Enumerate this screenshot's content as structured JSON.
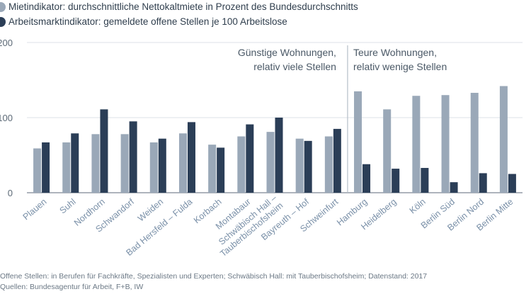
{
  "legend": [
    {
      "label": "Mietindikator: durchschnittliche Nettokaltmiete in Prozent des Bundesdurchschnitts",
      "color": "#9aa8b8"
    },
    {
      "label": "Arbeitsmarktindikator: gemeldete offene Stellen je 100 Arbeitslose",
      "color": "#2b3e57"
    }
  ],
  "annotations": {
    "left": [
      "Günstige Wohnungen,",
      "relativ viele Stellen"
    ],
    "right": [
      "Teure Wohnungen,",
      "relativ wenige Stellen"
    ]
  },
  "footnotes": [
    "Offene Stellen: in Berufen für Fachkräfte, Spezialisten und Experten; Schwäbisch Hall: mit Tauberbischofsheim; Datenstand: 2017",
    "Quellen: Bundesagentur für Arbeit, F+B, IW"
  ],
  "chart_data": {
    "type": "bar",
    "categories": [
      "Plauen",
      "Suhl",
      "Nordhorn",
      "Schwandorf",
      "Weiden",
      "Bad Hersfeld – Fulda",
      "Korbach",
      "Montabaur",
      "Schwäbisch Hall – Tauberbischofsheim",
      "Bayreuth – Hof",
      "Schweinfurt",
      "Hamburg",
      "Heidelberg",
      "Köln",
      "Berlin Süd",
      "Berlin Nord",
      "Berlin Mitte"
    ],
    "series": [
      {
        "name": "Mietindikator: durchschnittliche Nettokaltmiete in Prozent des Bundesdurchschnitts",
        "values": [
          59,
          67,
          78,
          78,
          67,
          79,
          64,
          75,
          81,
          72,
          75,
          135,
          111,
          129,
          130,
          133,
          142
        ]
      },
      {
        "name": "Arbeitsmarktindikator: gemeldete offene Stellen je 100 Arbeitslose",
        "values": [
          67,
          79,
          111,
          95,
          72,
          94,
          60,
          91,
          100,
          69,
          85,
          38,
          32,
          33,
          14,
          26,
          25
        ]
      }
    ],
    "yticks": [
      0,
      100,
      200
    ],
    "ylim": [
      0,
      200
    ],
    "xlabel": "",
    "ylabel": "",
    "grid": true
  }
}
